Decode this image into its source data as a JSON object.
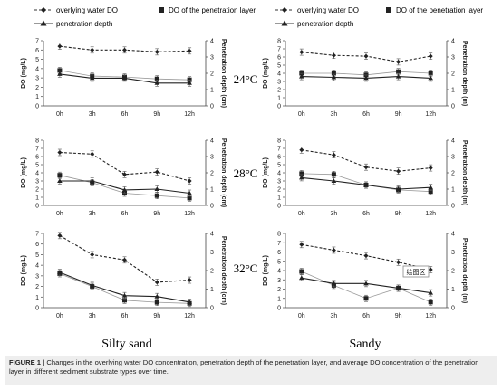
{
  "legend": {
    "overlying": "overlying water DO",
    "layer": "DO of the penetration layer",
    "depth": "penetration depth"
  },
  "axis_text": {
    "left": "DO (mg/L)",
    "right_left": "Penetration depth (cm)",
    "right_right": "Penetration depth (m)"
  },
  "temperatures": [
    "24°C",
    "28°C",
    "32°C"
  ],
  "column_labels": [
    "Silty sand",
    "Sandy"
  ],
  "tooltip_text": "绘图区",
  "caption": {
    "label": "FIGURE 1 |",
    "text": "Changes in the overlying water DO concentration, penetration depth of the penetration layer, and average DO concentration of the penetration layer in different sediment substrate types over time."
  },
  "chart_data": [
    {
      "type": "line",
      "substrate": "Silty sand",
      "temperature": "24°C",
      "categories": [
        "0h",
        "3h",
        "6h",
        "9h",
        "12h"
      ],
      "ylabel": "DO (mg/L)",
      "ylim": [
        0,
        7
      ],
      "y2label": "Penetration depth (cm)",
      "y2lim": [
        0,
        4
      ],
      "series": [
        {
          "name": "overlying water DO",
          "values": [
            6.4,
            6.0,
            6.0,
            5.8,
            5.9
          ]
        },
        {
          "name": "DO of the penetration layer",
          "values": [
            3.8,
            3.2,
            3.1,
            2.9,
            2.8
          ]
        },
        {
          "name": "penetration depth",
          "axis": "right",
          "values": [
            1.95,
            1.7,
            1.7,
            1.4,
            1.4
          ]
        }
      ]
    },
    {
      "type": "line",
      "substrate": "Silty sand",
      "temperature": "28°C",
      "categories": [
        "0h",
        "3h",
        "6h",
        "9h",
        "12h"
      ],
      "ylabel": "DO (mg/L)",
      "ylim": [
        0,
        8
      ],
      "y2label": "Penetration depth (cm)",
      "y2lim": [
        0,
        4
      ],
      "series": [
        {
          "name": "overlying water DO",
          "values": [
            6.5,
            6.3,
            3.8,
            4.1,
            3.0
          ]
        },
        {
          "name": "DO of the penetration layer",
          "values": [
            3.7,
            2.8,
            1.5,
            1.2,
            0.9
          ]
        },
        {
          "name": "penetration depth",
          "axis": "right",
          "values": [
            1.5,
            1.5,
            0.95,
            1.0,
            0.75
          ]
        }
      ]
    },
    {
      "type": "line",
      "substrate": "Silty sand",
      "temperature": "32°C",
      "categories": [
        "0h",
        "3h",
        "6h",
        "9h",
        "12h"
      ],
      "ylabel": "DO (mg/L)",
      "ylim": [
        0,
        7
      ],
      "y2label": "Penetration depth (cm)",
      "y2lim": [
        0,
        4
      ],
      "series": [
        {
          "name": "overlying water DO",
          "values": [
            6.8,
            5.0,
            4.5,
            2.4,
            2.6
          ]
        },
        {
          "name": "DO of the penetration layer",
          "values": [
            3.2,
            2.0,
            0.7,
            0.5,
            0.4
          ]
        },
        {
          "name": "penetration depth",
          "axis": "right",
          "values": [
            1.9,
            1.2,
            0.65,
            0.6,
            0.3
          ]
        }
      ]
    },
    {
      "type": "line",
      "substrate": "Sandy",
      "temperature": "24°C",
      "categories": [
        "0h",
        "3h",
        "6h",
        "9h",
        "12h"
      ],
      "ylabel": "DO (mg/L)",
      "ylim": [
        0,
        8
      ],
      "y2label": "Penetration depth (m)",
      "y2lim": [
        0,
        4
      ],
      "series": [
        {
          "name": "overlying water DO",
          "values": [
            6.6,
            6.2,
            6.1,
            5.4,
            6.1
          ]
        },
        {
          "name": "DO of the penetration layer",
          "values": [
            4.0,
            4.0,
            3.8,
            4.2,
            4.0
          ]
        },
        {
          "name": "penetration depth",
          "axis": "right",
          "values": [
            1.8,
            1.75,
            1.7,
            1.8,
            1.7
          ]
        }
      ]
    },
    {
      "type": "line",
      "substrate": "Sandy",
      "temperature": "28°C",
      "categories": [
        "0h",
        "3h",
        "6h",
        "9h",
        "12h"
      ],
      "ylabel": "DO (mg/L)",
      "ylim": [
        0,
        8
      ],
      "y2label": "Penetration depth (m)",
      "y2lim": [
        0,
        4
      ],
      "series": [
        {
          "name": "overlying water DO",
          "values": [
            6.8,
            6.2,
            4.7,
            4.2,
            4.6
          ]
        },
        {
          "name": "DO of the penetration layer",
          "values": [
            3.9,
            3.8,
            2.5,
            1.9,
            1.7
          ]
        },
        {
          "name": "penetration depth",
          "axis": "right",
          "values": [
            1.7,
            1.5,
            1.25,
            1.0,
            1.1
          ]
        }
      ]
    },
    {
      "type": "line",
      "substrate": "Sandy",
      "temperature": "32°C",
      "categories": [
        "0h",
        "3h",
        "6h",
        "9h",
        "12h"
      ],
      "ylabel": "DO (mg/L)",
      "ylim": [
        0,
        8
      ],
      "y2label": "Penetration depth (m)",
      "y2lim": [
        0,
        4
      ],
      "series": [
        {
          "name": "overlying water DO",
          "values": [
            6.8,
            6.2,
            5.6,
            4.9,
            4.1
          ]
        },
        {
          "name": "DO of the penetration layer",
          "values": [
            3.9,
            2.4,
            1.0,
            2.1,
            0.6
          ]
        },
        {
          "name": "penetration depth",
          "axis": "right",
          "values": [
            1.6,
            1.3,
            1.3,
            1.05,
            0.8
          ]
        }
      ]
    }
  ]
}
